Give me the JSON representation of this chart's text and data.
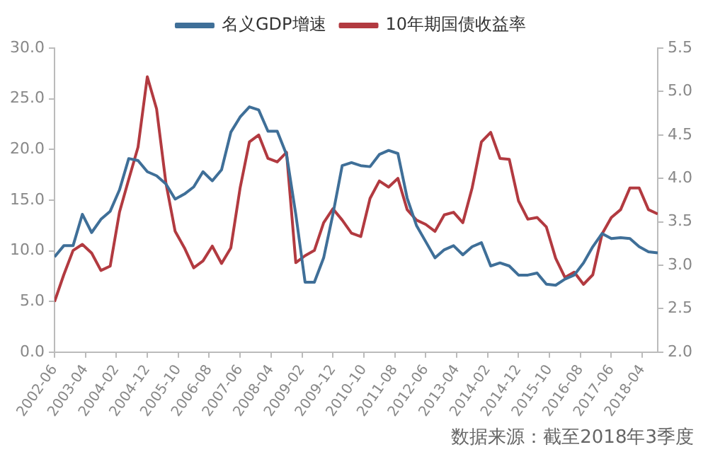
{
  "chart_data": {
    "type": "line",
    "x": [
      "2002-06",
      "2002-09",
      "2002-12",
      "2003-03",
      "2003-06",
      "2003-09",
      "2003-12",
      "2004-03",
      "2004-06",
      "2004-09",
      "2004-12",
      "2005-03",
      "2005-06",
      "2005-09",
      "2005-12",
      "2006-03",
      "2006-06",
      "2006-09",
      "2006-12",
      "2007-03",
      "2007-06",
      "2007-09",
      "2007-12",
      "2008-03",
      "2008-06",
      "2008-09",
      "2008-12",
      "2009-03",
      "2009-06",
      "2009-09",
      "2009-12",
      "2010-03",
      "2010-06",
      "2010-09",
      "2010-12",
      "2011-03",
      "2011-06",
      "2011-09",
      "2011-12",
      "2012-03",
      "2012-06",
      "2012-09",
      "2012-12",
      "2013-03",
      "2013-06",
      "2013-09",
      "2013-12",
      "2014-03",
      "2014-06",
      "2014-09",
      "2014-12",
      "2015-03",
      "2015-06",
      "2015-09",
      "2015-12",
      "2016-03",
      "2016-06",
      "2016-09",
      "2016-12",
      "2017-03",
      "2017-06",
      "2017-09",
      "2017-12",
      "2018-03",
      "2018-06",
      "2018-09"
    ],
    "series": [
      {
        "name": "名义GDP增速",
        "color": "#3f6f98",
        "values": [
          9.4,
          10.5,
          10.5,
          13.6,
          11.8,
          13.1,
          13.9,
          16.0,
          19.1,
          18.9,
          17.8,
          17.4,
          16.6,
          15.1,
          15.6,
          16.3,
          17.8,
          16.9,
          18.0,
          21.7,
          23.2,
          24.2,
          23.9,
          21.8,
          21.8,
          19.5,
          13.6,
          6.9,
          6.9,
          9.3,
          13.6,
          18.4,
          18.7,
          18.4,
          18.3,
          19.5,
          19.9,
          19.6,
          15.2,
          12.5,
          10.9,
          9.3,
          10.1,
          10.5,
          9.6,
          10.4,
          10.8,
          8.5,
          8.8,
          8.5,
          7.6,
          7.6,
          7.8,
          6.7,
          6.6,
          7.2,
          7.6,
          8.8,
          10.4,
          11.7,
          11.2,
          11.3,
          11.2,
          10.4,
          9.9,
          9.8
        ]
      },
      {
        "name": "10年期国债收益率",
        "color": "#b23a40",
        "axis": "y2",
        "values": [
          2.58,
          2.89,
          3.17,
          3.24,
          3.14,
          2.94,
          2.99,
          3.61,
          3.99,
          4.36,
          5.17,
          4.8,
          3.95,
          3.39,
          3.2,
          2.97,
          3.05,
          3.22,
          3.02,
          3.2,
          3.89,
          4.42,
          4.5,
          4.23,
          4.19,
          4.3,
          3.03,
          3.11,
          3.17,
          3.49,
          3.65,
          3.52,
          3.37,
          3.33,
          3.77,
          3.97,
          3.9,
          4.0,
          3.64,
          3.52,
          3.47,
          3.39,
          3.58,
          3.61,
          3.49,
          3.89,
          4.42,
          4.53,
          4.23,
          4.22,
          3.74,
          3.53,
          3.55,
          3.44,
          3.08,
          2.86,
          2.92,
          2.78,
          2.89,
          3.36,
          3.55,
          3.64,
          3.89,
          3.89,
          3.64,
          3.59
        ]
      }
    ],
    "xlim": [
      "2002-06",
      "2018-09"
    ],
    "xticks": [
      "2002-06",
      "2003-04",
      "2004-02",
      "2004-12",
      "2005-10",
      "2006-08",
      "2007-06",
      "2008-04",
      "2009-02",
      "2009-12",
      "2010-10",
      "2011-08",
      "2012-06",
      "2013-04",
      "2014-02",
      "2014-12",
      "2015-10",
      "2016-08",
      "2017-06",
      "2018-04"
    ],
    "ylim": [
      0,
      30
    ],
    "yticks": [
      {
        "value": 0,
        "label": "0.0"
      },
      {
        "value": 5,
        "label": "5.0"
      },
      {
        "value": 10,
        "label": "10.0"
      },
      {
        "value": 15,
        "label": "15.0"
      },
      {
        "value": 20,
        "label": "20.0"
      },
      {
        "value": 25,
        "label": "25.0"
      },
      {
        "value": 30,
        "label": "30.0"
      }
    ],
    "y2lim": [
      2,
      5.5
    ],
    "y2ticks": [
      {
        "value": 2,
        "label": "2.0"
      },
      {
        "value": 2.5,
        "label": "2.5"
      },
      {
        "value": 3,
        "label": "3.0"
      },
      {
        "value": 3.5,
        "label": "3.5"
      },
      {
        "value": 4,
        "label": "4.0"
      },
      {
        "value": 4.5,
        "label": "4.5"
      },
      {
        "value": 5,
        "label": "5.0"
      },
      {
        "value": 5.5,
        "label": "5.5"
      }
    ],
    "grid": false,
    "legend": "top",
    "marker": "none",
    "line_style": "solid",
    "annotations": [
      "数据来源：截至2018年3季度"
    ]
  }
}
